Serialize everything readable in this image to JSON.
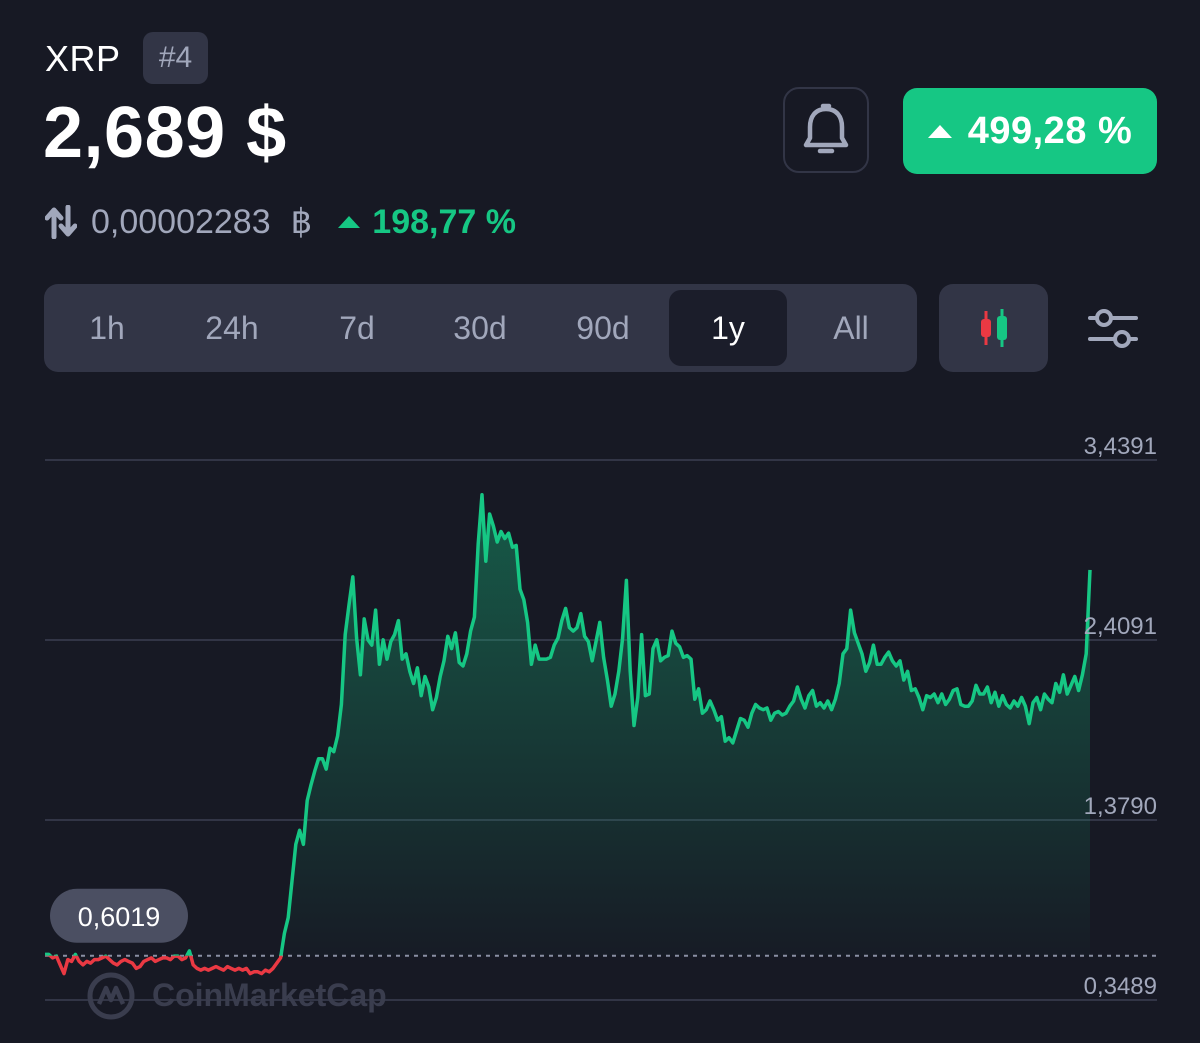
{
  "header": {
    "coin_name": "XRP",
    "rank": "#4",
    "price": "2,689 $",
    "btc_price": "0,00002283",
    "btc_symbol": "฿",
    "btc_change": "198,77 %",
    "change_pct": "499,28 %"
  },
  "icons": {
    "swap": "swap-arrows-icon",
    "bell": "bell-icon",
    "candles": "candlestick-icon",
    "settings": "sliders-icon",
    "up": "triangle-up-icon"
  },
  "colors": {
    "background": "#171924",
    "positive": "#16c784",
    "negative": "#ea3943",
    "panel": "#323546",
    "muted": "#a1a7bb"
  },
  "range_tabs": [
    {
      "label": "1h",
      "active": false
    },
    {
      "label": "24h",
      "active": false
    },
    {
      "label": "7d",
      "active": false
    },
    {
      "label": "30d",
      "active": false
    },
    {
      "label": "90d",
      "active": false
    },
    {
      "label": "1y",
      "active": true
    },
    {
      "label": "All",
      "active": false
    }
  ],
  "watermark": "CoinMarketCap",
  "chart_data": {
    "type": "area",
    "title": "",
    "xlabel": "",
    "ylabel": "",
    "y_ticks": [
      "3,4391",
      "2,4091",
      "1,3790",
      "0,3489"
    ],
    "y_tick_values": [
      3.4391,
      2.4091,
      1.379,
      0.3489
    ],
    "ylim": [
      0.3489,
      3.4391
    ],
    "baseline_value": 0.6019,
    "baseline_label": "0,6019",
    "grid": true,
    "line_style_below_baseline": "red",
    "line_style_above_baseline": "green",
    "series": [
      {
        "values": [
          0.61,
          0.61,
          0.59,
          0.6,
          0.55,
          0.5,
          0.58,
          0.57,
          0.61,
          0.57,
          0.55,
          0.57,
          0.56,
          0.58,
          0.58,
          0.59,
          0.6,
          0.58,
          0.56,
          0.55,
          0.57,
          0.58,
          0.57,
          0.56,
          0.53,
          0.54,
          0.57,
          0.58,
          0.59,
          0.57,
          0.58,
          0.59,
          0.59,
          0.58,
          0.6,
          0.6,
          0.58,
          0.59,
          0.63,
          0.55,
          0.53,
          0.52,
          0.53,
          0.52,
          0.53,
          0.54,
          0.53,
          0.52,
          0.54,
          0.53,
          0.52,
          0.53,
          0.52,
          0.53,
          0.5,
          0.51,
          0.51,
          0.5,
          0.52,
          0.51,
          0.53,
          0.56,
          0.59,
          0.73,
          0.82,
          1.03,
          1.24,
          1.32,
          1.24,
          1.49,
          1.58,
          1.66,
          1.73,
          1.73,
          1.67,
          1.79,
          1.77,
          1.86,
          2.04,
          2.44,
          2.61,
          2.77,
          2.42,
          2.21,
          2.53,
          2.41,
          2.38,
          2.58,
          2.27,
          2.41,
          2.3,
          2.4,
          2.44,
          2.52,
          2.3,
          2.33,
          2.23,
          2.16,
          2.25,
          2.09,
          2.2,
          2.14,
          2.01,
          2.08,
          2.2,
          2.29,
          2.43,
          2.36,
          2.45,
          2.28,
          2.26,
          2.33,
          2.46,
          2.54,
          2.96,
          3.24,
          2.86,
          3.13,
          3.06,
          2.97,
          3.03,
          2.99,
          3.02,
          2.94,
          2.95,
          2.7,
          2.64,
          2.51,
          2.27,
          2.38,
          2.3,
          2.3,
          2.3,
          2.31,
          2.38,
          2.42,
          2.52,
          2.59,
          2.48,
          2.46,
          2.48,
          2.56,
          2.43,
          2.4,
          2.29,
          2.4,
          2.51,
          2.31,
          2.18,
          2.03,
          2.1,
          2.23,
          2.42,
          2.75,
          2.23,
          1.92,
          2.08,
          2.44,
          2.09,
          2.1,
          2.36,
          2.41,
          2.29,
          2.31,
          2.32,
          2.46,
          2.39,
          2.37,
          2.31,
          2.32,
          2.3,
          2.07,
          2.13,
          1.99,
          2.01,
          2.06,
          2.01,
          1.95,
          1.97,
          1.83,
          1.85,
          1.82,
          1.89,
          1.96,
          1.95,
          1.91,
          1.99,
          2.04,
          2.02,
          2.01,
          2.02,
          1.95,
          1.99,
          2.0,
          1.98,
          1.99,
          2.03,
          2.06,
          2.14,
          2.07,
          2.02,
          2.09,
          2.12,
          2.03,
          2.05,
          2.02,
          2.06,
          2.01,
          2.07,
          2.16,
          2.33,
          2.36,
          2.58,
          2.45,
          2.39,
          2.33,
          2.23,
          2.28,
          2.38,
          2.27,
          2.27,
          2.31,
          2.34,
          2.29,
          2.26,
          2.29,
          2.18,
          2.23,
          2.12,
          2.13,
          2.08,
          2.01,
          2.09,
          2.08,
          2.1,
          2.05,
          2.1,
          2.04,
          2.07,
          2.12,
          2.13,
          2.04,
          2.03,
          2.03,
          2.06,
          2.15,
          2.1,
          2.1,
          2.14,
          2.05,
          2.11,
          2.03,
          2.09,
          2.04,
          2.02,
          2.06,
          2.03,
          2.08,
          2.03,
          1.93,
          2.05,
          2.08,
          2.01,
          2.1,
          2.07,
          2.05,
          2.16,
          2.11,
          2.21,
          2.1,
          2.15,
          2.2,
          2.12,
          2.21,
          2.33,
          2.81
        ]
      }
    ]
  }
}
